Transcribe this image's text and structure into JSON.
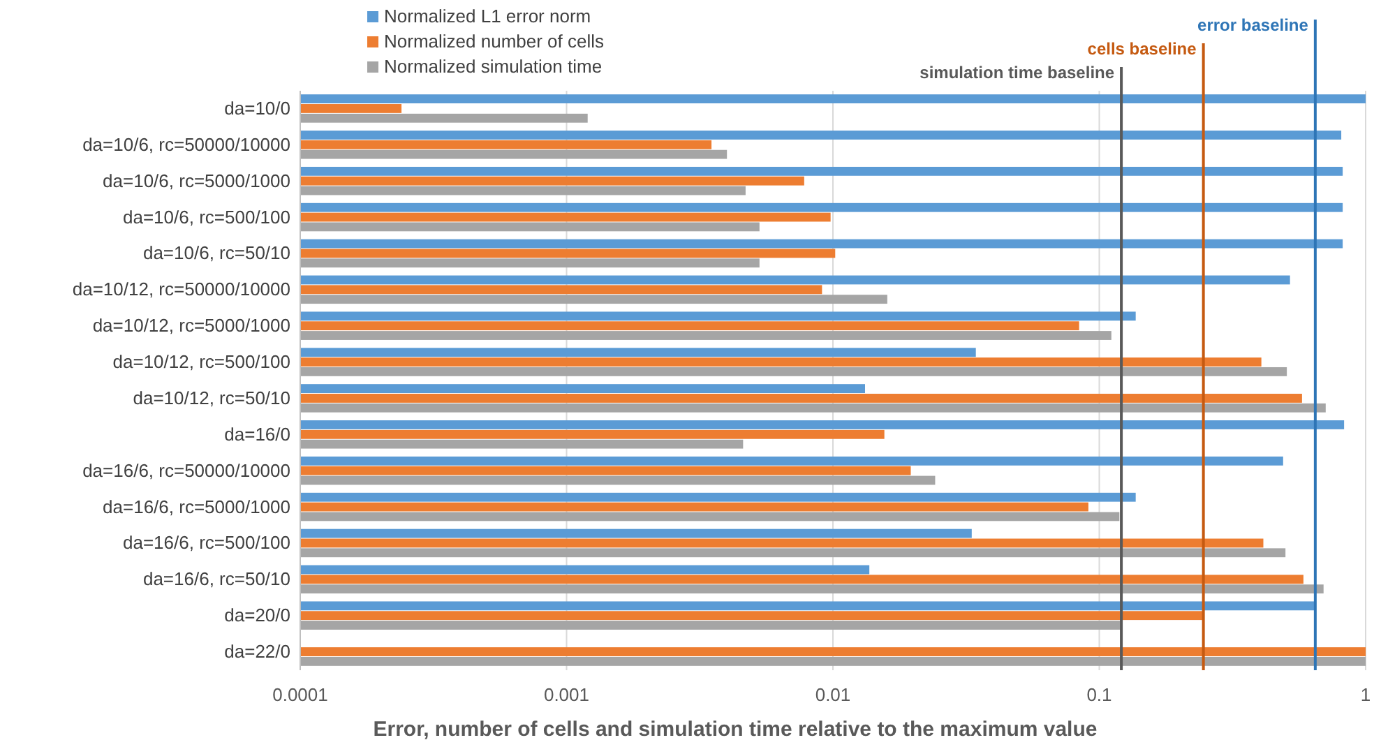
{
  "chart_data": {
    "type": "bar",
    "orientation": "horizontal",
    "xlabel": "Error, number of cells and simulation time relative to the maximum value",
    "categories": [
      "da=10/0",
      "da=10/6, rc=50000/10000",
      "da=10/6, rc=5000/1000",
      "da=10/6, rc=500/100",
      "da=10/6, rc=50/10",
      "da=10/12, rc=50000/10000",
      "da=10/12, rc=5000/1000",
      "da=10/12, rc=500/100",
      "da=10/12, rc=50/10",
      "da=16/0",
      "da=16/6, rc=50000/10000",
      "da=16/6, rc=5000/1000",
      "da=16/6, rc=500/100",
      "da=16/6, rc=50/10",
      "da=20/0",
      "da=22/0"
    ],
    "series": [
      {
        "name": "Normalized L1 error norm",
        "color": "#5b9bd5",
        "values": [
          1,
          0.81,
          0.82,
          0.82,
          0.82,
          0.52,
          0.137,
          0.0344,
          0.0132,
          0.83,
          0.49,
          0.137,
          0.0332,
          0.0137,
          0.647,
          null
        ]
      },
      {
        "name": "Normalized number of cells",
        "color": "#ed7d31",
        "values": [
          0.00024,
          0.0035,
          0.0078,
          0.0098,
          0.0102,
          0.0091,
          0.084,
          0.406,
          0.577,
          0.0156,
          0.0196,
          0.091,
          0.413,
          0.584,
          0.246,
          1
        ]
      },
      {
        "name": "Normalized simulation time",
        "color": "#a5a5a5",
        "values": [
          0.0012,
          0.004,
          0.0047,
          0.0053,
          0.0053,
          0.016,
          0.111,
          0.506,
          0.708,
          0.0046,
          0.0242,
          0.119,
          0.5,
          0.695,
          0.121,
          1
        ]
      }
    ],
    "ref_lines": [
      {
        "axis": "x",
        "value": 0.647,
        "label": "error baseline",
        "color": "#2e75b6"
      },
      {
        "axis": "x",
        "value": 0.246,
        "label": "cells baseline",
        "color": "#c55a11"
      },
      {
        "axis": "x",
        "value": 0.121,
        "label": "simulation time baseline",
        "color": "#595959"
      }
    ],
    "log": "x",
    "xlim": [
      0.0001,
      1
    ],
    "xticks": [
      0.0001,
      0.001,
      0.01,
      0.1,
      1
    ],
    "grid": "x",
    "legend": "top"
  }
}
